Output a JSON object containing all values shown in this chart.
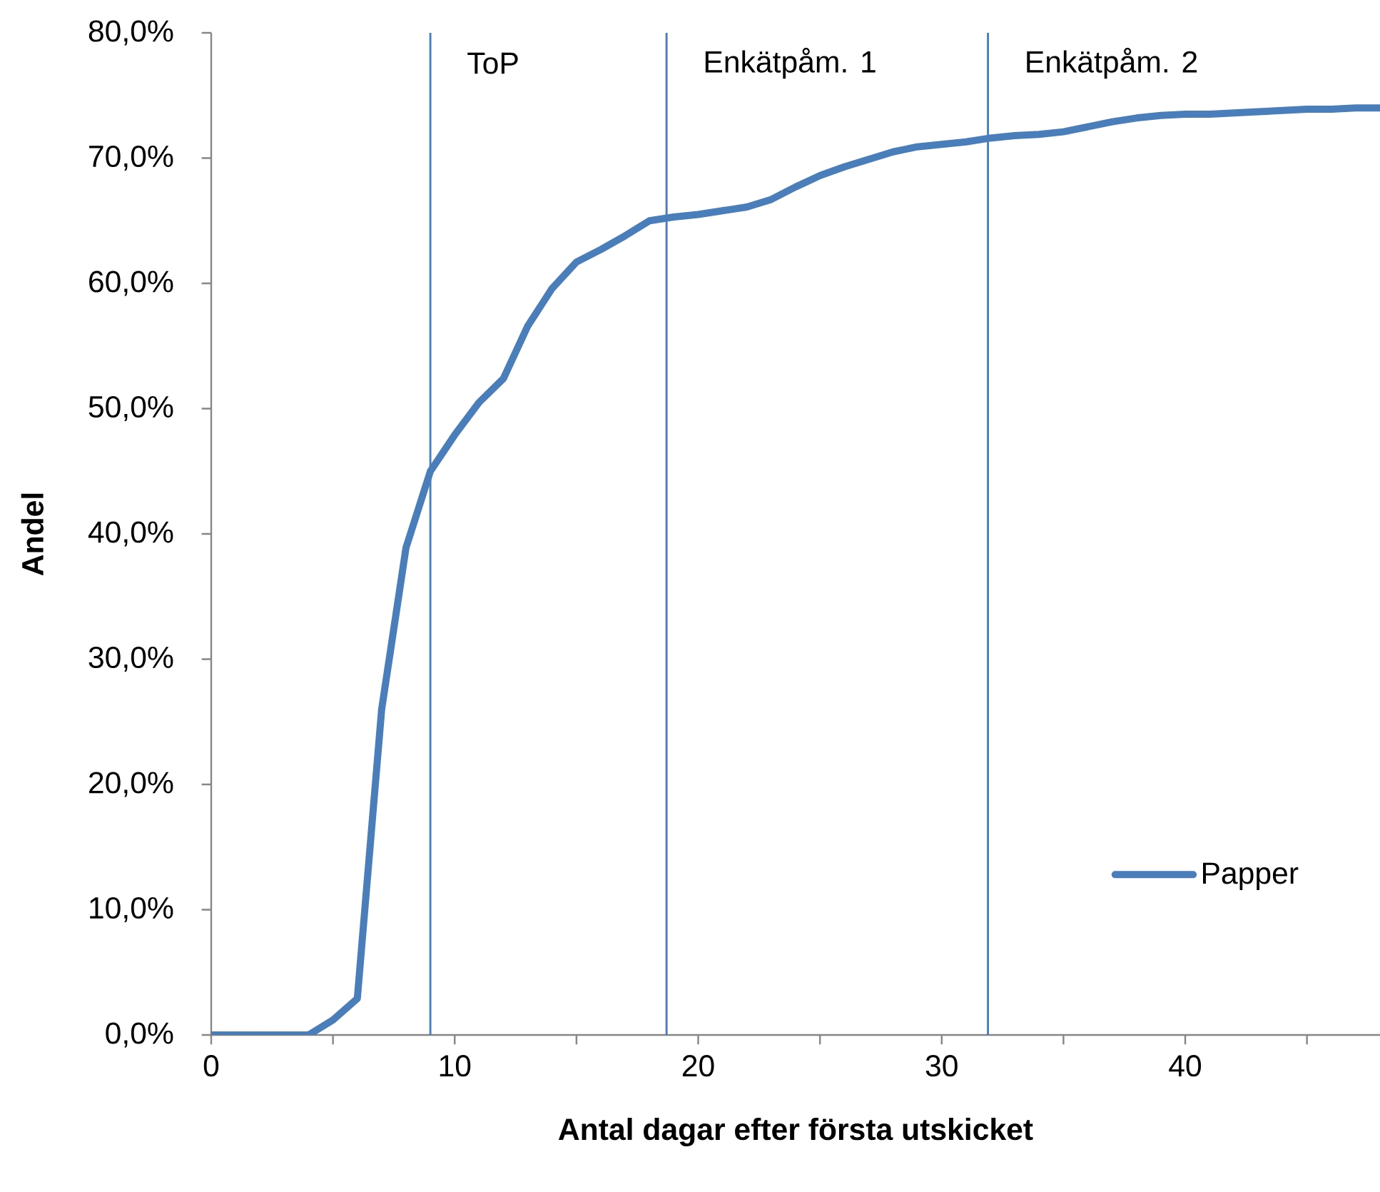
{
  "chart_data": {
    "type": "line",
    "xlabel": "Antal dagar efter första utskicket",
    "ylabel": "Andel",
    "x": [
      0,
      1,
      2,
      3,
      4,
      5,
      6,
      7,
      8,
      9,
      10,
      11,
      12,
      13,
      14,
      15,
      16,
      17,
      18,
      19,
      20,
      21,
      22,
      23,
      24,
      25,
      26,
      27,
      28,
      29,
      30,
      31,
      32,
      33,
      34,
      35,
      36,
      37,
      38,
      39,
      40,
      41,
      42,
      43,
      44,
      45,
      46,
      47,
      48
    ],
    "series": [
      {
        "name": "Papper",
        "color": "#4a7ebb",
        "values": [
          0,
          0,
          0,
          0,
          0,
          1.2,
          2.9,
          26,
          38.9,
          45,
          47.9,
          50.5,
          52.4,
          56.6,
          59.6,
          61.7,
          62.7,
          63.8,
          65,
          65.3,
          65.5,
          65.8,
          66.1,
          66.7,
          67.7,
          68.6,
          69.3,
          69.9,
          70.5,
          70.9,
          71.1,
          71.3,
          71.6,
          71.8,
          71.9,
          72.1,
          72.5,
          72.9,
          73.2,
          73.4,
          73.5,
          73.5,
          73.6,
          73.7,
          73.8,
          73.9,
          73.9,
          74,
          74
        ]
      }
    ],
    "xlim": [
      0,
      48
    ],
    "xticks": [
      0,
      {
        "value": 5,
        "label": null
      },
      10,
      {
        "value": 15,
        "label": null
      },
      20,
      {
        "value": 25,
        "label": null
      },
      30,
      {
        "value": 35,
        "label": null
      },
      40,
      {
        "value": 45,
        "label": null
      }
    ],
    "ylim": [
      0,
      80
    ],
    "yticks": [
      {
        "value": 0,
        "label": "0,0%"
      },
      {
        "value": 10,
        "label": "10,0%"
      },
      {
        "value": 20,
        "label": "20,0%"
      },
      {
        "value": 30,
        "label": "30,0%"
      },
      {
        "value": 40,
        "label": "40,0%"
      },
      {
        "value": 50,
        "label": "50,0%"
      },
      {
        "value": 60,
        "label": "60,0%"
      },
      {
        "value": 70,
        "label": "70,0%"
      },
      {
        "value": 80,
        "label": "80,0%"
      }
    ],
    "ref_lines": [
      {
        "axis": "x",
        "value": 9,
        "label": "ToP",
        "color": "#4a7ebb"
      },
      {
        "axis": "x",
        "value": 18.7,
        "label": "Enkätpåm. 1",
        "color": "#4a7ebb"
      },
      {
        "axis": "x",
        "value": 31.9,
        "label": "Enkätpåm. 2",
        "color": "#4a7ebb"
      }
    ],
    "legend": "bottom right",
    "marker": "none",
    "line_style": "solid"
  }
}
